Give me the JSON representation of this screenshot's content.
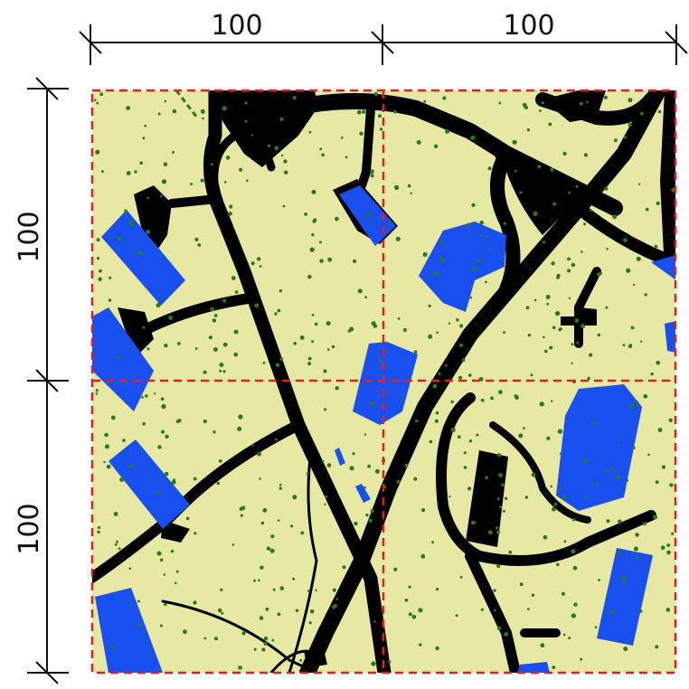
{
  "colors": {
    "ground": "#e6e8a4",
    "road": "#000000",
    "building": "#1a4fef",
    "tree": "#2a7a1c",
    "grid": "#e02020",
    "dimension": "#111111"
  },
  "dimensions": {
    "top": [
      "100",
      "100"
    ],
    "left": [
      "100",
      "100"
    ]
  },
  "grid": {
    "cells_x": 2,
    "cells_y": 2,
    "style": "dashed"
  }
}
